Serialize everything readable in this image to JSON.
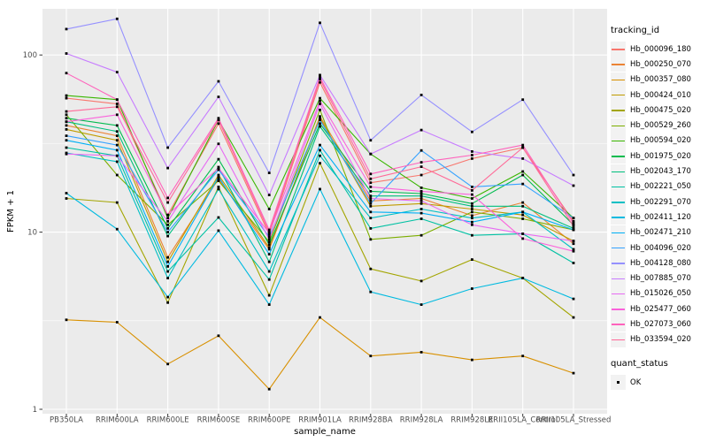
{
  "chart_data": {
    "type": "line",
    "title": "",
    "xlabel": "sample_name",
    "ylabel": "FPKM + 1",
    "y_scale": "log10",
    "ylim": [
      0.93,
      182
    ],
    "y_ticks": [
      {
        "label": "1",
        "value": 1
      },
      {
        "label": "10",
        "value": 10
      },
      {
        "label": "100",
        "value": 100
      }
    ],
    "y_minor_gridlines": [
      3.162,
      31.623
    ],
    "grid": true,
    "legend_position": "right",
    "panel_background": "#ebebeb",
    "gridline_color": "#ffffff",
    "marker": {
      "shape": "square",
      "color": "#000000",
      "size": 2.8
    },
    "color_legend_title": "tracking_id",
    "shape_legend_title": "quant_status",
    "shape_legend_items": [
      {
        "label": "OK",
        "shape": "square",
        "color": "#000000"
      }
    ],
    "categories": [
      "PB350LA",
      "RRIM600LA",
      "RRIM600LE",
      "RRIM600SE",
      "RRIM600PE",
      "RRIM901LA",
      "RRIM928BA",
      "RRIM928LA",
      "RRIM928LE",
      "RRII105LA_Control",
      "RRII105LA_Stressed"
    ],
    "series": [
      {
        "name": "Hb_000096_180",
        "color": "#F8766D",
        "values": [
          57,
          53,
          12.5,
          41,
          9.7,
          70,
          19,
          21,
          26,
          30,
          11.5
        ]
      },
      {
        "name": "Hb_000250_070",
        "color": "#EB8335",
        "values": [
          40,
          35,
          7.2,
          20,
          8.0,
          45,
          15,
          15.5,
          12.4,
          14.7,
          8.6
        ]
      },
      {
        "name": "Hb_000357_080",
        "color": "#D89000",
        "values": [
          3.2,
          3.1,
          1.8,
          2.6,
          1.3,
          3.3,
          2.0,
          2.1,
          1.9,
          2.0,
          1.6
        ]
      },
      {
        "name": "Hb_000424_010",
        "color": "#C09B00",
        "values": [
          38,
          33,
          6.8,
          21,
          8.2,
          44,
          14,
          14.5,
          13.5,
          12.5,
          8.9
        ]
      },
      {
        "name": "Hb_000475_020",
        "color": "#A3A500",
        "values": [
          15.5,
          14.7,
          4.0,
          18,
          4.4,
          24.5,
          6.2,
          5.3,
          7.0,
          5.5,
          3.3
        ]
      },
      {
        "name": "Hb_000529_260",
        "color": "#7CAE00",
        "values": [
          46,
          21,
          11.0,
          19.5,
          8.8,
          49,
          9.1,
          9.6,
          13.0,
          11.9,
          10.3
        ]
      },
      {
        "name": "Hb_000594_020",
        "color": "#39B600",
        "values": [
          59,
          56,
          12.0,
          43,
          13.5,
          57,
          27.6,
          17.8,
          15.5,
          22,
          12.0
        ]
      },
      {
        "name": "Hb_001975_020",
        "color": "#00BB4E",
        "values": [
          44,
          40,
          10.5,
          25.8,
          8.5,
          41,
          17,
          16.5,
          14.5,
          21,
          11.0
        ]
      },
      {
        "name": "Hb_002043_170",
        "color": "#00BF7D",
        "values": [
          42,
          37,
          9.5,
          23.3,
          6.8,
          39.5,
          16,
          16,
          14.0,
          14,
          10.5
        ]
      },
      {
        "name": "Hb_002221_050",
        "color": "#00C1A3",
        "values": [
          30,
          27,
          6.0,
          12.1,
          5.4,
          29,
          10.5,
          11.9,
          9.6,
          9.8,
          6.7
        ]
      },
      {
        "name": "Hb_002291_070",
        "color": "#00BFC4",
        "values": [
          28,
          25,
          5.5,
          17.5,
          6.0,
          27,
          12,
          13.5,
          12.0,
          13,
          8.0
        ]
      },
      {
        "name": "Hb_002411_120",
        "color": "#00BAE0",
        "values": [
          16.6,
          10.4,
          4.3,
          10.2,
          3.9,
          17.5,
          4.6,
          3.9,
          4.8,
          5.5,
          4.2
        ]
      },
      {
        "name": "Hb_002471_210",
        "color": "#00B0F6",
        "values": [
          33,
          29,
          6.4,
          20.5,
          7.5,
          31,
          13,
          12.8,
          11.4,
          13,
          10.3
        ]
      },
      {
        "name": "Hb_004096_020",
        "color": "#35A2FF",
        "values": [
          35,
          31,
          10.0,
          22.5,
          9.4,
          43,
          14.5,
          28.9,
          18,
          18.7,
          12.0
        ]
      },
      {
        "name": "Hb_004128_080",
        "color": "#9590FF",
        "values": [
          140,
          160,
          30,
          71,
          21.6,
          152,
          33,
          59.5,
          36.8,
          56,
          21
        ]
      },
      {
        "name": "Hb_007885_070",
        "color": "#C77CFF",
        "values": [
          102,
          80,
          23,
          58,
          16.2,
          77,
          27.6,
          37.7,
          28.5,
          26,
          18.3
        ]
      },
      {
        "name": "Hb_015026_050",
        "color": "#E76BF3",
        "values": [
          27.6,
          27,
          11.5,
          31.5,
          9.1,
          53,
          15.5,
          15,
          11.0,
          9.8,
          8.9
        ]
      },
      {
        "name": "Hb_025477_060",
        "color": "#FA62DB",
        "values": [
          42,
          46,
          12.5,
          23,
          9.9,
          55,
          18,
          17,
          16.3,
          9.2,
          7.8
        ]
      },
      {
        "name": "Hb_027073_060",
        "color": "#FF62BC",
        "values": [
          79,
          56,
          15.6,
          44,
          10.3,
          75,
          21.3,
          24.8,
          27.2,
          31,
          11.2
        ]
      },
      {
        "name": "Hb_033594_020",
        "color": "#FF6A98",
        "values": [
          48,
          51,
          14.7,
          43,
          10.0,
          73,
          20,
          23.4,
          17.2,
          30,
          10.8
        ]
      }
    ]
  }
}
